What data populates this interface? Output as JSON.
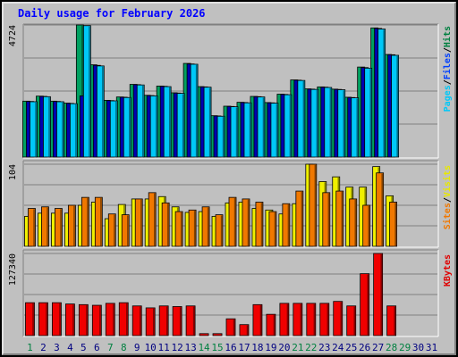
{
  "title": "Daily usage for February 2026",
  "chart_data": [
    {
      "type": "bar",
      "panel": "top",
      "max_label": "4724",
      "ylim": [
        0,
        4724
      ],
      "right_labels": [
        {
          "text": "Pages",
          "color": "#00c8f8"
        },
        {
          "text": "/",
          "color": "#000000"
        },
        {
          "text": "Files",
          "color": "#0040ff"
        },
        {
          "text": "/",
          "color": "#000000"
        },
        {
          "text": "Hits",
          "color": "#008040"
        }
      ],
      "categories": [
        "1",
        "2",
        "3",
        "4",
        "5",
        "6",
        "7",
        "8",
        "9",
        "10",
        "11",
        "12",
        "13",
        "14",
        "15",
        "16",
        "17",
        "18",
        "19",
        "20",
        "21",
        "22",
        "23",
        "24",
        "25",
        "26",
        "27",
        "28",
        "29",
        "30",
        "31"
      ],
      "series": [
        {
          "name": "Hits",
          "color": "#00a060",
          "values": [
            2000,
            2180,
            2000,
            1930,
            4724,
            3300,
            2030,
            2150,
            2600,
            2210,
            2540,
            2300,
            3350,
            2520,
            1480,
            1820,
            1960,
            2170,
            1950,
            2250,
            2760,
            2440,
            2510,
            2430,
            2140,
            3220,
            4620,
            3670,
            null,
            null,
            null
          ]
        },
        {
          "name": "Files",
          "color": "#0000b0",
          "values": [
            1990,
            2170,
            1990,
            1920,
            2190,
            3280,
            2020,
            2140,
            2590,
            2200,
            2530,
            2290,
            3330,
            2510,
            1470,
            1810,
            1950,
            2160,
            1940,
            2240,
            2750,
            2430,
            2500,
            2420,
            2130,
            3200,
            4600,
            3660,
            null,
            null,
            null
          ]
        },
        {
          "name": "Pages",
          "color": "#00c8f8",
          "values": [
            1980,
            2160,
            1980,
            1910,
            4700,
            3260,
            2010,
            2130,
            2580,
            2190,
            2520,
            2280,
            3320,
            2500,
            1460,
            1800,
            1940,
            2150,
            1930,
            2230,
            2740,
            2420,
            2490,
            2410,
            2120,
            3180,
            4580,
            3640,
            null,
            null,
            null
          ]
        }
      ]
    },
    {
      "type": "bar",
      "panel": "middle",
      "max_label": "104",
      "ylim": [
        0,
        104
      ],
      "right_labels": [
        {
          "text": "Sites",
          "color": "#f07800"
        },
        {
          "text": "/",
          "color": "#000000"
        },
        {
          "text": "Visits",
          "color": "#e8e800"
        }
      ],
      "categories": [
        "1",
        "2",
        "3",
        "4",
        "5",
        "6",
        "7",
        "8",
        "9",
        "10",
        "11",
        "12",
        "13",
        "14",
        "15",
        "16",
        "17",
        "18",
        "19",
        "20",
        "21",
        "22",
        "23",
        "24",
        "25",
        "26",
        "27",
        "28",
        "29",
        "30",
        "31"
      ],
      "series": [
        {
          "name": "Visits",
          "color": "#f0f000",
          "values": [
            38,
            42,
            42,
            42,
            52,
            56,
            35,
            53,
            60,
            60,
            63,
            50,
            43,
            44,
            38,
            55,
            56,
            48,
            46,
            41,
            54,
            104,
            82,
            88,
            75,
            75,
            101,
            64,
            null,
            null,
            null
          ]
        },
        {
          "name": "Sites",
          "color": "#f07800",
          "values": [
            48,
            50,
            48,
            52,
            62,
            62,
            41,
            40,
            60,
            68,
            55,
            44,
            46,
            50,
            40,
            62,
            60,
            56,
            44,
            54,
            70,
            104,
            68,
            70,
            60,
            52,
            93,
            56,
            null,
            null,
            null
          ]
        }
      ]
    },
    {
      "type": "bar",
      "panel": "bottom",
      "max_label": "127340",
      "ylim": [
        0,
        127340
      ],
      "right_labels": [
        {
          "text": "KBytes",
          "color": "#e00000"
        }
      ],
      "categories": [
        "1",
        "2",
        "3",
        "4",
        "5",
        "6",
        "7",
        "8",
        "9",
        "10",
        "11",
        "12",
        "13",
        "14",
        "15",
        "16",
        "17",
        "18",
        "19",
        "20",
        "21",
        "22",
        "23",
        "24",
        "25",
        "26",
        "27",
        "28",
        "29",
        "30",
        "31"
      ],
      "series": [
        {
          "name": "KBytes",
          "color": "#f00000",
          "values": [
            51000,
            51000,
            51000,
            49000,
            48000,
            47000,
            50000,
            51000,
            46000,
            43000,
            46000,
            45000,
            46000,
            3000,
            3000,
            26000,
            17000,
            48000,
            33000,
            50000,
            50000,
            50000,
            50000,
            53000,
            46000,
            96000,
            127340,
            46000,
            null,
            null,
            null
          ]
        }
      ]
    }
  ],
  "x_axis": {
    "days": [
      "1",
      "2",
      "3",
      "4",
      "5",
      "6",
      "7",
      "8",
      "9",
      "10",
      "11",
      "12",
      "13",
      "14",
      "15",
      "16",
      "17",
      "18",
      "19",
      "20",
      "21",
      "22",
      "23",
      "24",
      "25",
      "26",
      "27",
      "28",
      "29",
      "30",
      "31"
    ],
    "weekend_days": [
      "1",
      "7",
      "8",
      "14",
      "15",
      "21",
      "22",
      "28",
      "29"
    ],
    "weekday_color": "#000080",
    "weekend_color": "#008040"
  }
}
